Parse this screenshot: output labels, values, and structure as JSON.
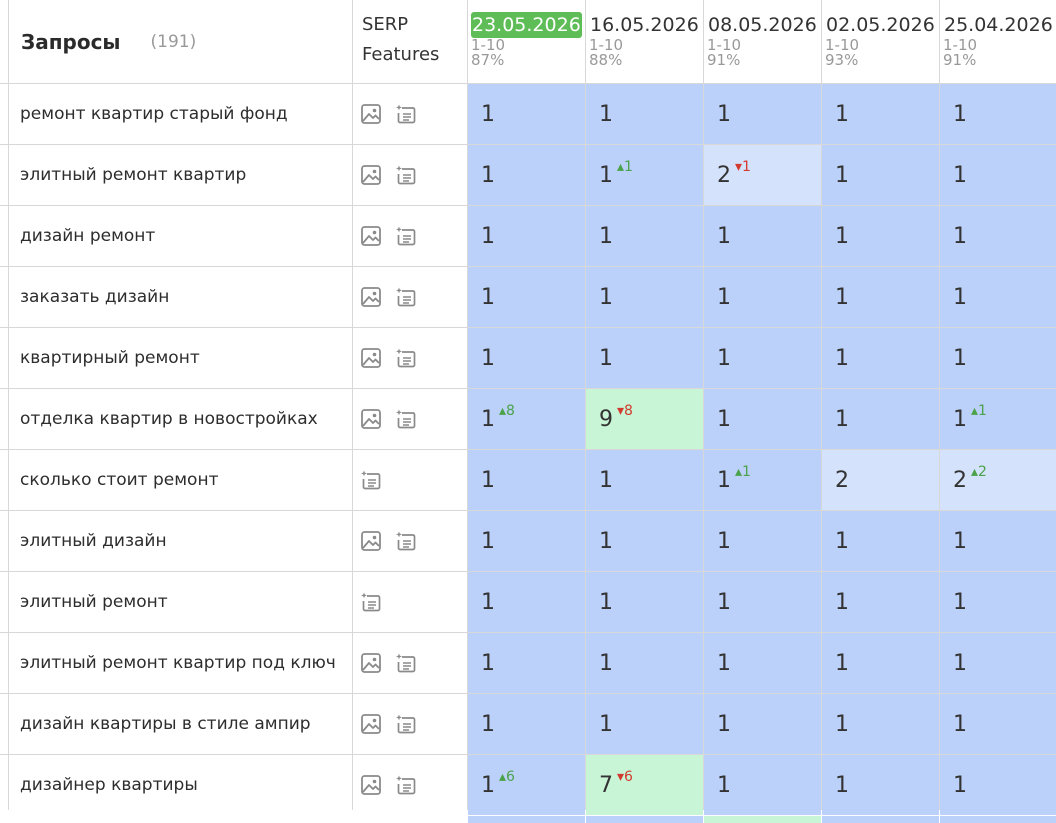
{
  "header": {
    "queries_label": "Запросы",
    "queries_count": "(191)",
    "serp_label_1": "SERP",
    "serp_label_2": "Features"
  },
  "dates": [
    {
      "date": "23.05.2026",
      "range": "1-10",
      "percent": "87%",
      "current": true
    },
    {
      "date": "16.05.2026",
      "range": "1-10",
      "percent": "88%",
      "current": false
    },
    {
      "date": "08.05.2026",
      "range": "1-10",
      "percent": "91%",
      "current": false
    },
    {
      "date": "02.05.2026",
      "range": "1-10",
      "percent": "93%",
      "current": false
    },
    {
      "date": "25.04.2026",
      "range": "1-10",
      "percent": "91%",
      "current": false
    }
  ],
  "rows": [
    {
      "query": "ремонт квартир старый фонд",
      "features": [
        "image-icon",
        "snippet-icon"
      ],
      "positions": [
        {
          "v": "1"
        },
        {
          "v": "1"
        },
        {
          "v": "1"
        },
        {
          "v": "1"
        },
        {
          "v": "1"
        }
      ]
    },
    {
      "query": "элитный ремонт квартир",
      "features": [
        "image-icon",
        "snippet-icon"
      ],
      "positions": [
        {
          "v": "1"
        },
        {
          "v": "1",
          "d": "1",
          "dir": "up"
        },
        {
          "v": "2",
          "d": "1",
          "dir": "down",
          "tone": "mid"
        },
        {
          "v": "1"
        },
        {
          "v": "1"
        }
      ]
    },
    {
      "query": "дизайн ремонт",
      "features": [
        "image-icon",
        "snippet-icon"
      ],
      "positions": [
        {
          "v": "1"
        },
        {
          "v": "1"
        },
        {
          "v": "1"
        },
        {
          "v": "1"
        },
        {
          "v": "1"
        }
      ]
    },
    {
      "query": "заказать дизайн",
      "features": [
        "image-icon",
        "snippet-icon"
      ],
      "positions": [
        {
          "v": "1"
        },
        {
          "v": "1"
        },
        {
          "v": "1"
        },
        {
          "v": "1"
        },
        {
          "v": "1"
        }
      ]
    },
    {
      "query": "квартирный ремонт",
      "features": [
        "image-icon",
        "snippet-icon"
      ],
      "positions": [
        {
          "v": "1"
        },
        {
          "v": "1"
        },
        {
          "v": "1"
        },
        {
          "v": "1"
        },
        {
          "v": "1"
        }
      ]
    },
    {
      "query": "отделка квартир в новостройках",
      "features": [
        "image-icon",
        "snippet-icon"
      ],
      "positions": [
        {
          "v": "1",
          "d": "8",
          "dir": "up"
        },
        {
          "v": "9",
          "d": "8",
          "dir": "down",
          "tone": "up"
        },
        {
          "v": "1"
        },
        {
          "v": "1"
        },
        {
          "v": "1",
          "d": "1",
          "dir": "up"
        }
      ]
    },
    {
      "query": "сколько стоит ремонт",
      "features": [
        "snippet-icon"
      ],
      "positions": [
        {
          "v": "1"
        },
        {
          "v": "1"
        },
        {
          "v": "1",
          "d": "1",
          "dir": "up"
        },
        {
          "v": "2",
          "tone": "mid"
        },
        {
          "v": "2",
          "d": "2",
          "dir": "up",
          "tone": "mid"
        }
      ]
    },
    {
      "query": "элитный дизайн",
      "features": [
        "image-icon",
        "snippet-icon"
      ],
      "positions": [
        {
          "v": "1"
        },
        {
          "v": "1"
        },
        {
          "v": "1"
        },
        {
          "v": "1"
        },
        {
          "v": "1"
        }
      ]
    },
    {
      "query": "элитный ремонт",
      "features": [
        "snippet-icon"
      ],
      "positions": [
        {
          "v": "1"
        },
        {
          "v": "1"
        },
        {
          "v": "1"
        },
        {
          "v": "1"
        },
        {
          "v": "1"
        }
      ]
    },
    {
      "query": "элитный ремонт квартир под ключ",
      "features": [
        "image-icon",
        "snippet-icon"
      ],
      "positions": [
        {
          "v": "1"
        },
        {
          "v": "1"
        },
        {
          "v": "1"
        },
        {
          "v": "1"
        },
        {
          "v": "1"
        }
      ]
    },
    {
      "query": "дизайн квартиры в стиле ампир",
      "features": [
        "image-icon",
        "snippet-icon"
      ],
      "positions": [
        {
          "v": "1"
        },
        {
          "v": "1"
        },
        {
          "v": "1"
        },
        {
          "v": "1"
        },
        {
          "v": "1"
        }
      ]
    },
    {
      "query": "дизайнер квартиры",
      "features": [
        "image-icon",
        "snippet-icon"
      ],
      "positions": [
        {
          "v": "1",
          "d": "6",
          "dir": "up"
        },
        {
          "v": "7",
          "d": "6",
          "dir": "down",
          "tone": "up"
        },
        {
          "v": "1"
        },
        {
          "v": "1"
        },
        {
          "v": "1"
        }
      ]
    }
  ],
  "colors": {
    "position_default": "#bcd1fa",
    "position_improved": "#c8f5d5",
    "position_changed": "#d5e2fb",
    "current_date": "#5fbd57",
    "delta_up": "#4aa24a",
    "delta_down": "#d33a2f"
  }
}
